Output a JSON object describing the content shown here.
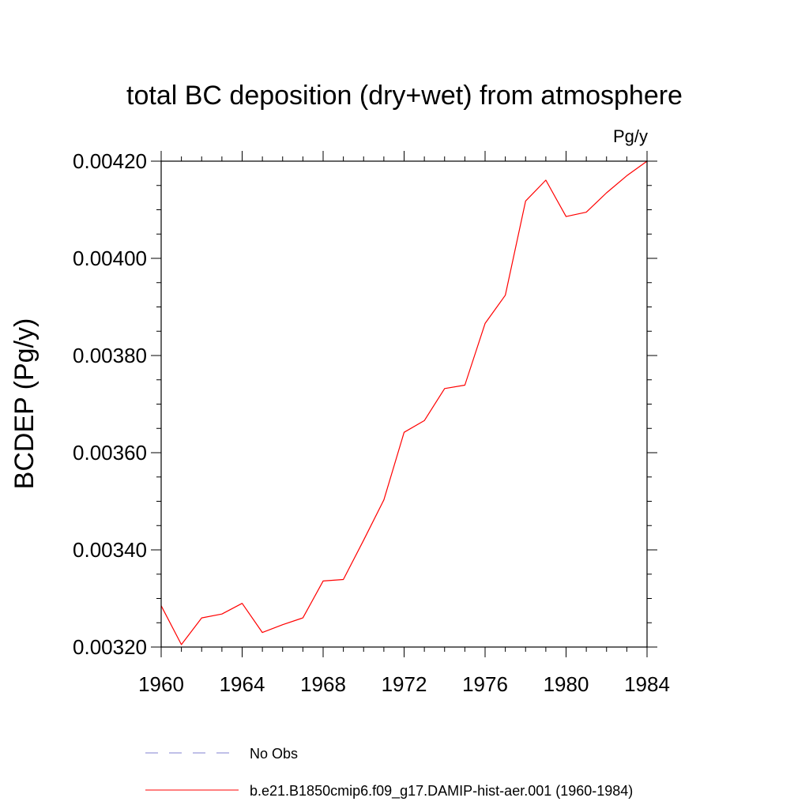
{
  "chart_data": {
    "type": "line",
    "title": "total BC deposition (dry+wet) from atmosphere",
    "units_label": "Pg/y",
    "xlabel": "",
    "ylabel": "BCDEP  (Pg/y)",
    "xlim": [
      1960,
      1984
    ],
    "ylim": [
      0.0032,
      0.0042
    ],
    "x_ticks": [
      1960,
      1964,
      1968,
      1972,
      1976,
      1980,
      1984
    ],
    "x_tick_labels": [
      "1960",
      "1964",
      "1968",
      "1972",
      "1976",
      "1980",
      "1984"
    ],
    "y_ticks": [
      0.0032,
      0.0034,
      0.0036,
      0.0038,
      0.004,
      0.0042
    ],
    "y_tick_labels": [
      "0.00320",
      "0.00340",
      "0.00360",
      "0.00380",
      "0.00400",
      "0.00420"
    ],
    "grid": false,
    "legend_position": "bottom",
    "series": [
      {
        "name": "b.e21.B1850cmip6.f09_g17.DAMIP-hist-aer.001 (1960-1984)",
        "color": "#ff0000",
        "style": "solid",
        "x": [
          1960,
          1961,
          1962,
          1963,
          1964,
          1965,
          1966,
          1967,
          1968,
          1969,
          1970,
          1971,
          1972,
          1973,
          1974,
          1975,
          1976,
          1977,
          1978,
          1979,
          1980,
          1981,
          1982,
          1983,
          1984
        ],
        "y": [
          0.003285,
          0.003205,
          0.00326,
          0.003268,
          0.00329,
          0.00323,
          0.003246,
          0.00326,
          0.003336,
          0.003339,
          0.00342,
          0.003503,
          0.003642,
          0.003666,
          0.003732,
          0.003739,
          0.003866,
          0.003924,
          0.004118,
          0.004161,
          0.004086,
          0.004095,
          0.004135,
          0.00417,
          0.0042
        ]
      }
    ],
    "legend": [
      {
        "label": "No Obs",
        "color": "#8080d0",
        "style": "dashed"
      },
      {
        "label": "b.e21.B1850cmip6.f09_g17.DAMIP-hist-aer.001 (1960-1984)",
        "color": "#ff0000",
        "style": "solid"
      }
    ]
  }
}
